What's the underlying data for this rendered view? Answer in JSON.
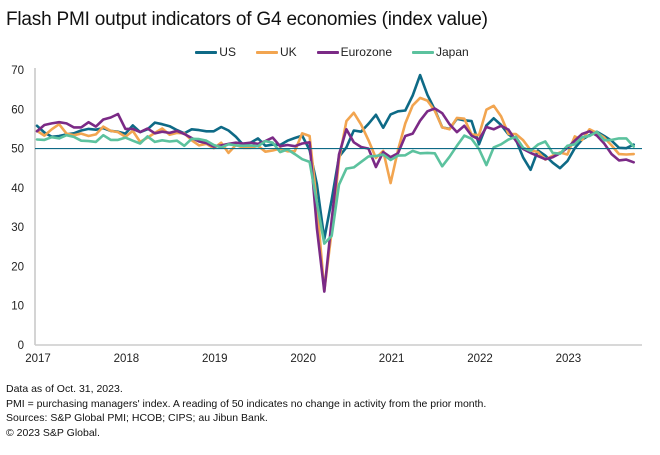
{
  "chart_data": {
    "type": "line",
    "title": "Flash PMI output indicators of G4 economies (index value)",
    "xlabel": "",
    "ylabel": "",
    "ylim": [
      0,
      70
    ],
    "yticks": [
      0,
      10,
      20,
      30,
      40,
      50,
      60,
      70
    ],
    "xticks": [
      "2017",
      "2018",
      "2019",
      "2020",
      "2021",
      "2022",
      "2023"
    ],
    "x_start": "2017-01",
    "x_end": "2023-10",
    "frequency": "monthly",
    "reference_line": 50,
    "legend_position": "top-center",
    "grid": false,
    "series": [
      {
        "name": "US",
        "color": "#0e6a86",
        "values": [
          55.8,
          54.1,
          53.0,
          53.2,
          53.6,
          53.9,
          54.6,
          55.0,
          54.8,
          55.2,
          54.5,
          54.3,
          53.8,
          55.9,
          54.2,
          54.9,
          56.6,
          56.2,
          55.7,
          54.7,
          53.9,
          54.9,
          54.7,
          54.4,
          54.4,
          55.5,
          54.6,
          53.0,
          50.9,
          51.5,
          52.6,
          50.7,
          51.0,
          50.9,
          52.0,
          52.7,
          53.3,
          49.6,
          40.9,
          27.0,
          37.0,
          47.9,
          50.3,
          54.6,
          54.3,
          56.3,
          58.6,
          55.3,
          58.7,
          59.5,
          59.7,
          63.5,
          68.7,
          63.7,
          59.9,
          55.4,
          55.0,
          57.6,
          57.2,
          57.0,
          51.1,
          55.9,
          57.7,
          56.0,
          53.6,
          52.3,
          47.7,
          44.6,
          49.5,
          48.2,
          46.4,
          45.0,
          46.8,
          50.1,
          52.3,
          53.4,
          54.3,
          53.2,
          52.0,
          50.2,
          50.1,
          51.0
        ]
      },
      {
        "name": "UK",
        "color": "#f2a550",
        "values": [
          54.5,
          53.3,
          54.9,
          56.2,
          53.8,
          53.4,
          53.8,
          53.2,
          53.6,
          55.6,
          54.5,
          54.2,
          53.0,
          54.5,
          51.7,
          52.8,
          54.0,
          55.1,
          53.5,
          54.0,
          53.9,
          52.1,
          50.8,
          51.2,
          50.1,
          51.5,
          48.9,
          50.9,
          50.2,
          50.2,
          50.7,
          49.2,
          49.5,
          50.0,
          49.3,
          49.3,
          53.9,
          53.2,
          36.0,
          13.8,
          29.0,
          47.1,
          57.0,
          59.1,
          56.1,
          52.1,
          47.6,
          49.4,
          41.2,
          49.6,
          56.4,
          61.0,
          62.9,
          62.2,
          59.6,
          55.4,
          54.9,
          57.8,
          57.6,
          53.6,
          53.4,
          59.9,
          60.9,
          58.2,
          53.7,
          53.7,
          52.1,
          49.6,
          49.1,
          47.2,
          48.2,
          49.0,
          48.5,
          53.1,
          52.2,
          54.9,
          54.0,
          52.8,
          50.8,
          48.6,
          48.5,
          48.6
        ]
      },
      {
        "name": "Eurozone",
        "color": "#7b2a86",
        "values": [
          54.4,
          56.0,
          56.4,
          56.7,
          56.4,
          55.4,
          55.4,
          56.7,
          55.6,
          57.4,
          57.9,
          58.8,
          55.0,
          55.0,
          54.2,
          55.1,
          53.9,
          54.3,
          54.0,
          54.5,
          53.7,
          52.7,
          51.8,
          51.4,
          50.5,
          50.8,
          51.2,
          51.5,
          51.3,
          51.5,
          51.2,
          51.9,
          52.8,
          50.6,
          50.9,
          50.6,
          51.3,
          51.6,
          29.7,
          13.6,
          31.9,
          48.5,
          54.9,
          51.6,
          50.4,
          50.0,
          45.3,
          49.1,
          47.8,
          48.8,
          53.2,
          53.8,
          57.1,
          59.5,
          60.2,
          59.0,
          56.2,
          54.2,
          55.8,
          53.3,
          52.3,
          55.5,
          54.9,
          55.8,
          54.8,
          52.0,
          49.9,
          48.9,
          48.1,
          47.3,
          47.8,
          48.8,
          50.2,
          52.0,
          53.7,
          54.4,
          53.3,
          51.3,
          48.6,
          47.0,
          47.2,
          46.5
        ]
      },
      {
        "name": "Japan",
        "color": "#5cc29e",
        "values": [
          52.3,
          52.2,
          52.9,
          52.6,
          53.4,
          53.0,
          52.0,
          51.9,
          51.7,
          53.4,
          52.2,
          52.2,
          52.8,
          52.0,
          51.3,
          53.1,
          51.7,
          52.1,
          51.8,
          52.0,
          50.7,
          52.5,
          52.4,
          52.0,
          50.9,
          50.3,
          51.1,
          50.8,
          50.7,
          50.8,
          50.6,
          51.9,
          51.5,
          49.1,
          49.8,
          48.6,
          47.3,
          46.6,
          36.2,
          25.8,
          27.8,
          40.8,
          44.9,
          45.2,
          46.6,
          48.0,
          48.1,
          48.5,
          47.1,
          48.2,
          48.3,
          49.4,
          48.8,
          48.9,
          48.8,
          45.5,
          47.9,
          50.7,
          53.3,
          52.5,
          49.9,
          45.8,
          50.3,
          51.1,
          52.3,
          53.0,
          50.2,
          49.4,
          51.0,
          51.8,
          48.9,
          48.7,
          50.7,
          51.1,
          52.9,
          53.2,
          54.3,
          52.1,
          52.2,
          52.6,
          52.6,
          50.5
        ]
      }
    ]
  },
  "footnotes": [
    "Data as of Oct. 31, 2023.",
    "PMI = purchasing managers' index. A reading of 50 indicates no change in activity from the prior month.",
    "Sources: S&P Global PMI; HCOB; CIPS; au Jibun Bank.",
    "© 2023 S&P Global."
  ]
}
